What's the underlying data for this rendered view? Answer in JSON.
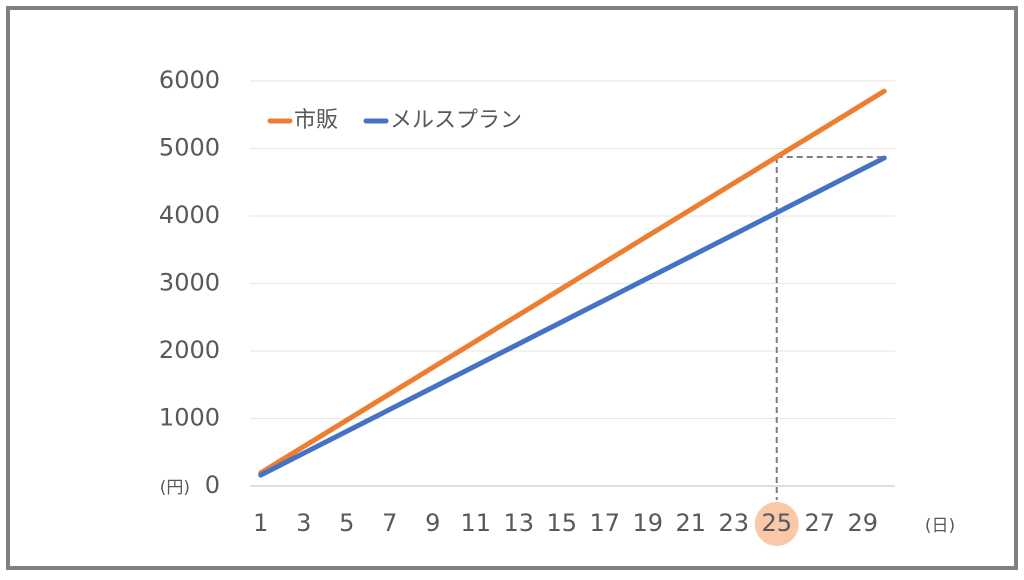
{
  "chart_data": {
    "type": "line",
    "x": [
      1,
      2,
      3,
      4,
      5,
      6,
      7,
      8,
      9,
      10,
      11,
      12,
      13,
      14,
      15,
      16,
      17,
      18,
      19,
      20,
      21,
      22,
      23,
      24,
      25,
      26,
      27,
      28,
      29,
      30
    ],
    "series": [
      {
        "name": "市販",
        "color": "#ed7d31",
        "values": [
          195,
          390,
          585,
          780,
          975,
          1170,
          1365,
          1560,
          1755,
          1950,
          2145,
          2340,
          2535,
          2730,
          2925,
          3120,
          3315,
          3510,
          3705,
          3900,
          4095,
          4290,
          4485,
          4680,
          4875,
          5070,
          5265,
          5460,
          5655,
          5850
        ]
      },
      {
        "name": "メルスプラン",
        "color": "#4472c4",
        "values": [
          162,
          324,
          486,
          648,
          810,
          972,
          1134,
          1296,
          1458,
          1620,
          1782,
          1944,
          2106,
          2268,
          2430,
          2592,
          2754,
          2916,
          3078,
          3240,
          3402,
          3564,
          3726,
          3888,
          4050,
          4212,
          4374,
          4536,
          4698,
          4860
        ]
      }
    ],
    "xlim": [
      0.5,
      30.5
    ],
    "xticks": [
      1,
      3,
      5,
      7,
      9,
      11,
      13,
      15,
      17,
      19,
      21,
      23,
      25,
      27,
      29
    ],
    "ylim": [
      0,
      6000
    ],
    "yticks": [
      0,
      1000,
      2000,
      3000,
      4000,
      5000,
      6000
    ],
    "grid": true,
    "legend": "top-left",
    "y_unit": "(円)",
    "x_unit": "(日)",
    "highlight_x": 25,
    "highlight_color": "#f8c8a8"
  }
}
